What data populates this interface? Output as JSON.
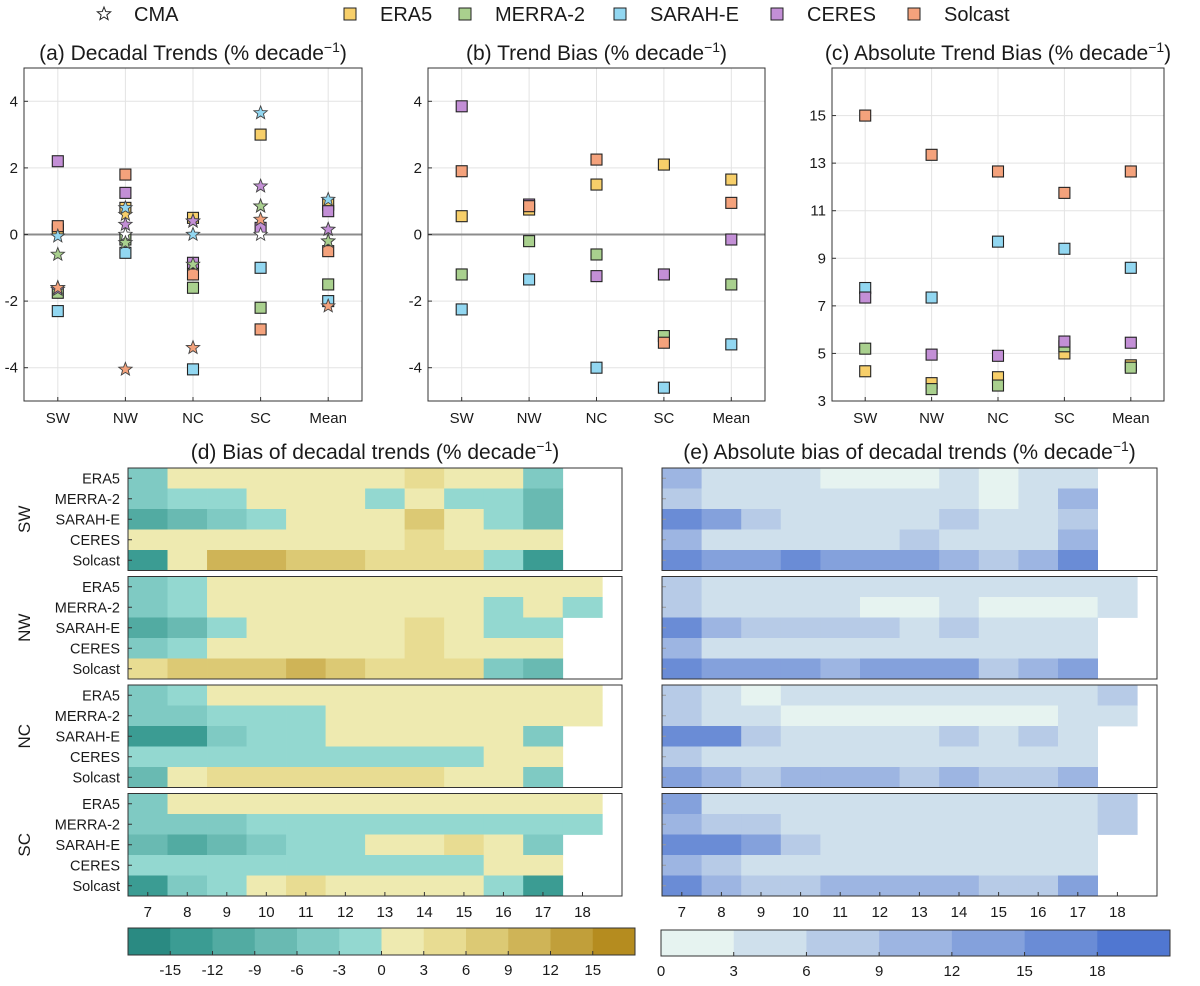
{
  "legend": [
    {
      "name": "CMA",
      "symbol": "star",
      "color": "#ffffff"
    },
    {
      "name": "ERA5",
      "symbol": "square",
      "color": "#f7cf6a"
    },
    {
      "name": "MERRA-2",
      "symbol": "square",
      "color": "#a9d08e"
    },
    {
      "name": "SARAH-E",
      "symbol": "square",
      "color": "#92d7f1"
    },
    {
      "name": "CERES",
      "symbol": "square",
      "color": "#c38fd6"
    },
    {
      "name": "Solcast",
      "symbol": "square",
      "color": "#f4a27c"
    }
  ],
  "chart_data": [
    {
      "id": "a",
      "type": "scatter",
      "title": "(a) Decadal Trends (% decade",
      "title_sup": "−1",
      "title_close": ")",
      "categories": [
        "SW",
        "NW",
        "NC",
        "SC",
        "Mean"
      ],
      "ylim": [
        -5,
        5
      ],
      "yticks": [
        -4,
        -2,
        0,
        2,
        4
      ],
      "zero_line": true,
      "series": [
        {
          "name": "CMA",
          "marker": "star",
          "color": "#ffffff",
          "values": [
            -1.6,
            0.0,
            0.4,
            0.0,
            0.15
          ]
        },
        {
          "name": "ERA5",
          "marker": "star",
          "color": "#f7cf6a",
          "values": [
            -1.6,
            0.6,
            0.4,
            0.85,
            -0.2
          ]
        },
        {
          "name": "MERRA-2",
          "marker": "star",
          "color": "#a9d08e",
          "values": [
            -0.6,
            -0.25,
            -0.9,
            0.85,
            -0.2
          ]
        },
        {
          "name": "SARAH-E",
          "marker": "star",
          "color": "#92d7f1",
          "values": [
            -0.05,
            0.8,
            0.0,
            3.65,
            1.05
          ]
        },
        {
          "name": "CERES",
          "marker": "star",
          "color": "#c38fd6",
          "values": [
            -1.65,
            0.3,
            0.4,
            1.45,
            0.15
          ]
        },
        {
          "name": "Solcast",
          "marker": "star",
          "color": "#f4a27c",
          "values": [
            -1.6,
            -4.05,
            -3.4,
            0.45,
            -2.15
          ]
        },
        {
          "name": "ERA5",
          "marker": "square",
          "color": "#f7cf6a",
          "values": [
            0.15,
            0.8,
            0.5,
            3.0,
            0.9
          ]
        },
        {
          "name": "MERRA-2",
          "marker": "square",
          "color": "#a9d08e",
          "values": [
            -1.75,
            -0.15,
            -1.6,
            -2.2,
            -1.5
          ]
        },
        {
          "name": "SARAH-E",
          "marker": "square",
          "color": "#92d7f1",
          "values": [
            -2.3,
            -0.55,
            -4.05,
            -1.0,
            -2.0
          ]
        },
        {
          "name": "CERES",
          "marker": "square",
          "color": "#c38fd6",
          "values": [
            2.2,
            1.25,
            -0.85,
            0.2,
            0.7
          ]
        },
        {
          "name": "Solcast",
          "marker": "square",
          "color": "#f4a27c",
          "values": [
            0.25,
            1.8,
            -1.2,
            -2.85,
            -0.5
          ]
        }
      ]
    },
    {
      "id": "b",
      "type": "scatter",
      "title": "(b) Trend Bias (% decade",
      "title_sup": "−1",
      "title_close": ")",
      "categories": [
        "SW",
        "NW",
        "NC",
        "SC",
        "Mean"
      ],
      "ylim": [
        -5,
        5
      ],
      "yticks": [
        -4,
        -2,
        0,
        2,
        4
      ],
      "zero_line": true,
      "series": [
        {
          "name": "ERA5",
          "marker": "square",
          "color": "#f7cf6a",
          "values": [
            0.55,
            0.75,
            1.5,
            2.1,
            1.65
          ]
        },
        {
          "name": "MERRA-2",
          "marker": "square",
          "color": "#a9d08e",
          "values": [
            -1.2,
            -0.2,
            -0.6,
            -3.05,
            -1.5
          ]
        },
        {
          "name": "SARAH-E",
          "marker": "square",
          "color": "#92d7f1",
          "values": [
            -2.25,
            -1.35,
            -4.0,
            -4.6,
            -3.3
          ]
        },
        {
          "name": "CERES",
          "marker": "square",
          "color": "#c38fd6",
          "values": [
            3.85,
            0.9,
            -1.25,
            -1.2,
            -0.15
          ]
        },
        {
          "name": "Solcast",
          "marker": "square",
          "color": "#f4a27c",
          "values": [
            1.9,
            0.85,
            2.25,
            -3.25,
            0.95
          ]
        }
      ]
    },
    {
      "id": "c",
      "type": "scatter",
      "title": "(c) Absolute Trend Bias (% decade",
      "title_sup": "−1",
      "title_close": ")",
      "categories": [
        "SW",
        "NW",
        "NC",
        "SC",
        "Mean"
      ],
      "ylim": [
        3,
        17
      ],
      "yticks": [
        3,
        5,
        7,
        9,
        11,
        13,
        15
      ],
      "zero_line": false,
      "series": [
        {
          "name": "ERA5",
          "marker": "square",
          "color": "#f7cf6a",
          "values": [
            4.25,
            3.75,
            4.0,
            5.0,
            4.5
          ]
        },
        {
          "name": "MERRA-2",
          "marker": "square",
          "color": "#a9d08e",
          "values": [
            5.2,
            3.5,
            3.65,
            5.3,
            4.4
          ]
        },
        {
          "name": "SARAH-E",
          "marker": "square",
          "color": "#92d7f1",
          "values": [
            7.75,
            7.35,
            9.7,
            9.4,
            8.6
          ]
        },
        {
          "name": "CERES",
          "marker": "square",
          "color": "#c38fd6",
          "values": [
            7.35,
            4.95,
            4.9,
            5.5,
            5.45
          ]
        },
        {
          "name": "Solcast",
          "marker": "square",
          "color": "#f4a27c",
          "values": [
            15.0,
            13.35,
            12.65,
            11.75,
            12.65
          ]
        }
      ]
    },
    {
      "id": "d",
      "type": "heatmap",
      "title": "(d) Bias of decadal trends (% decade",
      "title_sup": "−1",
      "title_close": ")",
      "x": [
        7,
        8,
        9,
        10,
        11,
        12,
        13,
        14,
        15,
        16,
        17,
        18
      ],
      "groups": [
        "SW",
        "NW",
        "NC",
        "SC"
      ],
      "rows": [
        "ERA5",
        "MERRA-2",
        "SARAH-E",
        "CERES",
        "Solcast"
      ],
      "colorbar": {
        "min": -18,
        "max": 18,
        "step": 3,
        "ticks": [
          -15,
          -12,
          -9,
          -6,
          -3,
          0,
          3,
          6,
          9,
          12,
          15
        ],
        "colors": [
          "#2a8a82",
          "#3b9c93",
          "#52aba2",
          "#69bab2",
          "#7fcac3",
          "#93d8d0",
          "#eeeab0",
          "#e8dc92",
          "#dcc974",
          "#cfb457",
          "#c19f3a",
          "#b58c1f"
        ]
      },
      "values": [
        [
          [
            -4,
            0.5,
            0.5,
            0.5,
            0.5,
            0.5,
            0.5,
            3.5,
            0.5,
            0.5,
            -5,
            null
          ],
          [
            -5,
            -2,
            -2,
            0.5,
            0.5,
            0.5,
            -2,
            0.5,
            -2,
            -2,
            -8,
            null
          ],
          [
            -10,
            -7,
            -5,
            -2,
            0.5,
            0.5,
            0.5,
            6,
            0.5,
            -2,
            -7,
            null
          ],
          [
            1,
            1,
            1,
            1,
            1,
            1,
            1,
            4,
            1,
            1,
            1,
            null
          ],
          [
            -13,
            1,
            9,
            9,
            7,
            7,
            5,
            5,
            4,
            -2,
            -13,
            null
          ]
        ],
        [
          [
            -4,
            -2,
            0.5,
            0.5,
            0.5,
            0.5,
            0.5,
            0.5,
            0.5,
            0.5,
            0.5,
            0.5
          ],
          [
            -5,
            -2,
            0.5,
            0.5,
            0.5,
            0.5,
            0.5,
            0.5,
            0.5,
            -2,
            0.5,
            -2
          ],
          [
            -11,
            -7,
            -2,
            0.5,
            0.5,
            2,
            2,
            5,
            0.5,
            -2,
            -2,
            null
          ],
          [
            -4,
            -2,
            0.5,
            0.5,
            0.5,
            0.5,
            0.5,
            3.5,
            0.5,
            1,
            1,
            null
          ],
          [
            5,
            7,
            7,
            7,
            10,
            7,
            5,
            4,
            4,
            -4,
            -7,
            null
          ]
        ],
        [
          [
            -4,
            -2,
            0.5,
            0.5,
            0.5,
            0.5,
            0.5,
            0.5,
            0.5,
            2,
            2,
            2
          ],
          [
            -5,
            -4,
            -2,
            -2,
            -2,
            0.5,
            0.5,
            0.5,
            0.5,
            0.5,
            0.5,
            0.5
          ],
          [
            -13,
            -13,
            -5,
            -2,
            -2,
            0.5,
            0.5,
            0.5,
            0.5,
            0.5,
            -4,
            null
          ],
          [
            -2,
            -2,
            -2,
            -2,
            -2,
            -2,
            -2,
            -2,
            -2,
            0.5,
            0.5,
            null
          ],
          [
            -7,
            1,
            3,
            3,
            5,
            5,
            3,
            3,
            1,
            1,
            -5,
            null
          ]
        ],
        [
          [
            -4,
            0.5,
            0.5,
            0.5,
            0.5,
            0.5,
            0.5,
            0.5,
            2,
            2,
            2,
            2
          ],
          [
            -5,
            -4,
            -4,
            -2,
            -2,
            -2,
            -2,
            -2,
            -2,
            -2,
            -2,
            -2
          ],
          [
            -7,
            -11,
            -9,
            -4,
            -2,
            -2,
            0.5,
            0.5,
            3,
            0.5,
            -4,
            null
          ],
          [
            -2,
            -2,
            -2,
            -2,
            -2,
            -2,
            -2,
            -2,
            -2,
            0.5,
            0.5,
            null
          ],
          [
            -13,
            -5,
            -2,
            1,
            4,
            1,
            1,
            1,
            1,
            -2,
            -13,
            null
          ]
        ]
      ]
    },
    {
      "id": "e",
      "type": "heatmap",
      "title": "(e) Absolute bias of decadal trends (% decade",
      "title_sup": "−1",
      "title_close": ")",
      "x": [
        7,
        8,
        9,
        10,
        11,
        12,
        13,
        14,
        15,
        16,
        17,
        18
      ],
      "groups": [
        "SW",
        "NW",
        "NC",
        "SC"
      ],
      "rows": [
        "ERA5",
        "MERRA-2",
        "SARAH-E",
        "CERES",
        "Solcast"
      ],
      "colorbar": {
        "min": 0,
        "max": 21,
        "step": 3,
        "ticks": [
          0,
          3,
          6,
          9,
          12,
          15,
          18
        ],
        "colors": [
          "#e6f3f0",
          "#cfe0ec",
          "#b7cbe7",
          "#9db5e2",
          "#84a1dc",
          "#6a8cd6",
          "#5077d1"
        ]
      },
      "values": [
        [
          [
            10,
            4.5,
            4.5,
            4.5,
            1.5,
            1.5,
            1.5,
            4.5,
            1.5,
            4.5,
            4.5,
            null
          ],
          [
            7.5,
            4.5,
            4.5,
            4.5,
            4.5,
            4.5,
            4.5,
            4.5,
            1.5,
            4.5,
            10,
            null
          ],
          [
            16.5,
            13,
            7.5,
            4.5,
            4.5,
            4.5,
            4.5,
            7.5,
            4.5,
            4.5,
            7.5,
            null
          ],
          [
            10,
            4.5,
            4.5,
            4.5,
            4.5,
            4.5,
            7.5,
            4.5,
            4.5,
            4.5,
            10,
            null
          ],
          [
            16.5,
            13,
            13,
            16.5,
            13,
            13,
            13,
            10,
            7.5,
            10,
            16.5,
            null
          ]
        ],
        [
          [
            7.5,
            4.5,
            4.5,
            4.5,
            4.5,
            4.5,
            4.5,
            4.5,
            4.5,
            4.5,
            4.5,
            4.5
          ],
          [
            7.5,
            4.5,
            4.5,
            4.5,
            4.5,
            1.5,
            1.5,
            4.5,
            1.5,
            1.5,
            1.5,
            4.5
          ],
          [
            16.5,
            10,
            7.5,
            7.5,
            7.5,
            7.5,
            4.5,
            7.5,
            4.5,
            4.5,
            4.5,
            null
          ],
          [
            10,
            4.5,
            4.5,
            4.5,
            4.5,
            4.5,
            4.5,
            4.5,
            4.5,
            4.5,
            4.5,
            null
          ],
          [
            16.5,
            13,
            13,
            13,
            10,
            13,
            13,
            13,
            7.5,
            10,
            13,
            null
          ]
        ],
        [
          [
            7.5,
            4.5,
            1.5,
            4.5,
            4.5,
            4.5,
            4.5,
            4.5,
            4.5,
            4.5,
            4.5,
            7.5
          ],
          [
            7.5,
            4.5,
            4.5,
            1.5,
            1.5,
            1.5,
            1.5,
            1.5,
            1.5,
            1.5,
            4.5,
            4.5
          ],
          [
            16.5,
            16.5,
            7.5,
            4.5,
            4.5,
            4.5,
            4.5,
            7.5,
            4.5,
            7.5,
            4.5,
            null
          ],
          [
            7.5,
            4.5,
            4.5,
            4.5,
            4.5,
            4.5,
            4.5,
            4.5,
            4.5,
            4.5,
            4.5,
            null
          ],
          [
            13,
            10,
            7.5,
            10,
            10,
            10,
            7.5,
            10,
            7.5,
            7.5,
            10,
            null
          ]
        ],
        [
          [
            13,
            4.5,
            4.5,
            4.5,
            4.5,
            4.5,
            4.5,
            4.5,
            4.5,
            4.5,
            4.5,
            7.5
          ],
          [
            10,
            7.5,
            7.5,
            4.5,
            4.5,
            4.5,
            4.5,
            4.5,
            4.5,
            4.5,
            4.5,
            7.5
          ],
          [
            16.5,
            16.5,
            13,
            7.5,
            4.5,
            4.5,
            4.5,
            4.5,
            4.5,
            4.5,
            4.5,
            null
          ],
          [
            10,
            7.5,
            4.5,
            4.5,
            4.5,
            4.5,
            4.5,
            4.5,
            4.5,
            4.5,
            4.5,
            null
          ],
          [
            16.5,
            10,
            7.5,
            7.5,
            10,
            10,
            10,
            10,
            7.5,
            7.5,
            13,
            null
          ]
        ]
      ]
    }
  ]
}
